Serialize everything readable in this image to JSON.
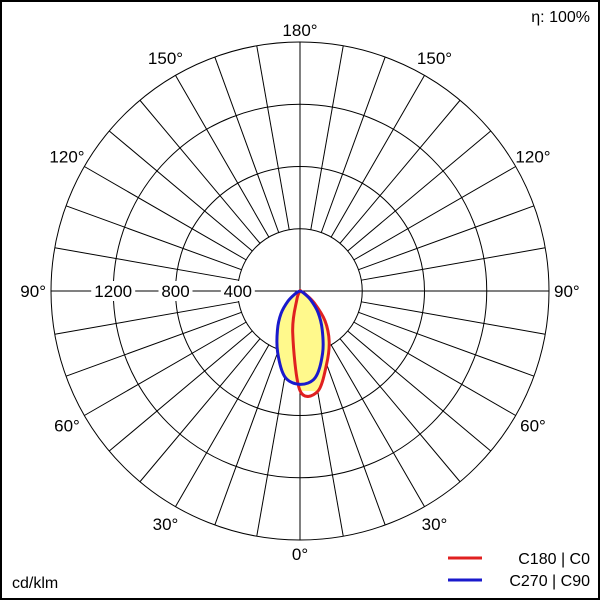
{
  "chart_data": {
    "type": "polar",
    "efficiency_label": "η: 100%",
    "unit_label": "cd/klm",
    "angle_ticks": [
      {
        "label": "180°",
        "angle": 180,
        "side": "top"
      },
      {
        "label": "150°",
        "angle": 150,
        "side": "left"
      },
      {
        "label": "150°",
        "angle": 150,
        "side": "right"
      },
      {
        "label": "120°",
        "angle": 120,
        "side": "left"
      },
      {
        "label": "120°",
        "angle": 120,
        "side": "right"
      },
      {
        "label": "90°",
        "angle": 90,
        "side": "left"
      },
      {
        "label": "90°",
        "angle": 90,
        "side": "right"
      },
      {
        "label": "60°",
        "angle": 60,
        "side": "left"
      },
      {
        "label": "60°",
        "angle": 60,
        "side": "right"
      },
      {
        "label": "30°",
        "angle": 30,
        "side": "left"
      },
      {
        "label": "30°",
        "angle": 30,
        "side": "right"
      },
      {
        "label": "0°",
        "angle": 0,
        "side": "bottom"
      }
    ],
    "radial_ticks": [
      {
        "label": "400",
        "value": 400
      },
      {
        "label": "800",
        "value": 800
      },
      {
        "label": "1200",
        "value": 1200
      }
    ],
    "rmax": 1600,
    "series": [
      {
        "name": "C180 | C0",
        "color": "#e02020",
        "points": [
          {
            "angle": -90,
            "value": 0
          },
          {
            "angle": -60,
            "value": 0
          },
          {
            "angle": -30,
            "value": 0
          },
          {
            "angle": -20,
            "value": 60
          },
          {
            "angle": -10,
            "value": 270
          },
          {
            "angle": 0,
            "value": 640
          },
          {
            "angle": 10,
            "value": 655
          },
          {
            "angle": 20,
            "value": 500
          },
          {
            "angle": 30,
            "value": 375
          },
          {
            "angle": 40,
            "value": 250
          },
          {
            "angle": 50,
            "value": 120
          },
          {
            "angle": 60,
            "value": 40
          },
          {
            "angle": 70,
            "value": 10
          },
          {
            "angle": 90,
            "value": 0
          }
        ]
      },
      {
        "name": "C270 | C90",
        "color": "#1a1acc",
        "points": [
          {
            "angle": -90,
            "value": 0
          },
          {
            "angle": -70,
            "value": 10
          },
          {
            "angle": -60,
            "value": 35
          },
          {
            "angle": -50,
            "value": 100
          },
          {
            "angle": -40,
            "value": 190
          },
          {
            "angle": -30,
            "value": 290
          },
          {
            "angle": -20,
            "value": 420
          },
          {
            "angle": -10,
            "value": 560
          },
          {
            "angle": 0,
            "value": 600
          },
          {
            "angle": 10,
            "value": 565
          },
          {
            "angle": 20,
            "value": 425
          },
          {
            "angle": 30,
            "value": 285
          },
          {
            "angle": 40,
            "value": 180
          },
          {
            "angle": 50,
            "value": 90
          },
          {
            "angle": 60,
            "value": 30
          },
          {
            "angle": 70,
            "value": 8
          },
          {
            "angle": 90,
            "value": 0
          }
        ]
      }
    ],
    "fill_color": "#fff98c",
    "grid": true,
    "legend_position": "bottom-right"
  }
}
